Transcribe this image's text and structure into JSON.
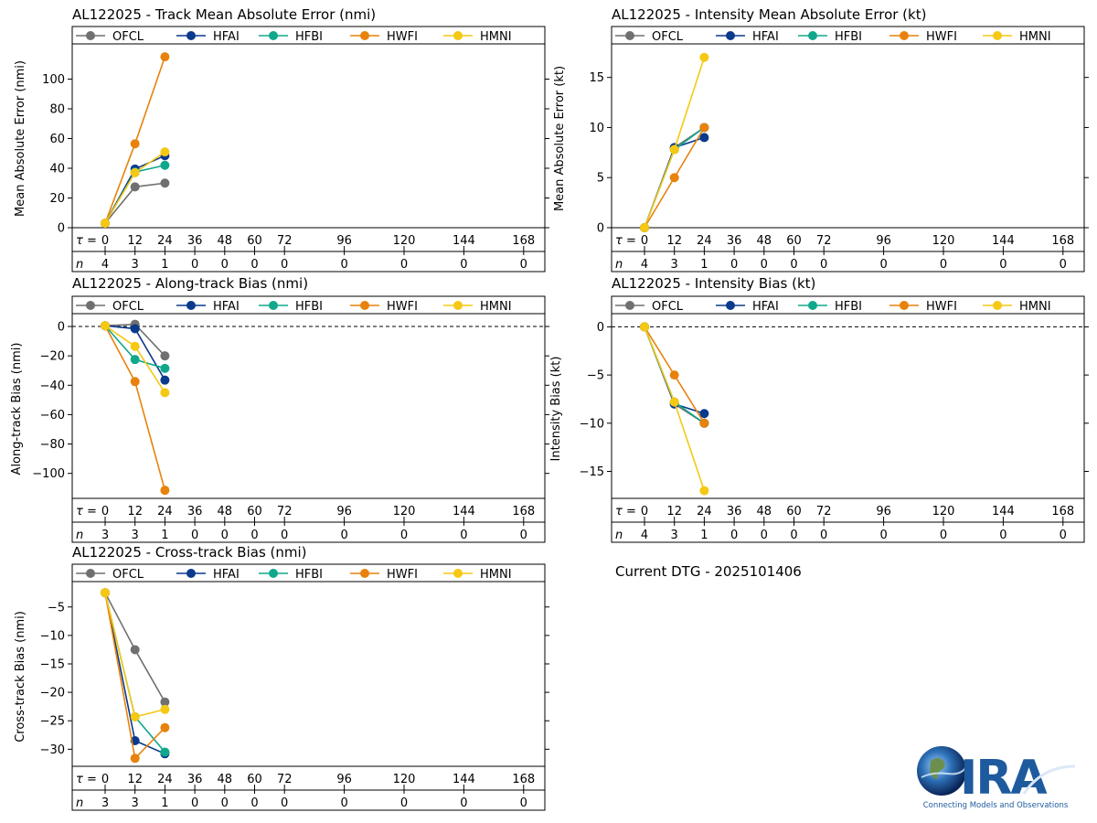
{
  "colors": {
    "OFCL": "#707070",
    "HFAI": "#0a3a8c",
    "HFBI": "#10a88c",
    "HWFI": "#e8820c",
    "HMNI": "#f5c813"
  },
  "models": [
    "OFCL",
    "HFAI",
    "HFBI",
    "HWFI",
    "HMNI"
  ],
  "tau_label": "τ =",
  "n_label": "n",
  "chart_data": [
    {
      "id": "track",
      "type": "line",
      "title": "AL122025 - Track Mean Absolute Error (nmi)",
      "ylabel": "Mean Absolute Error (nmi)",
      "ylim": [
        0,
        120
      ],
      "yticks": [
        0,
        20,
        40,
        60,
        80,
        100
      ],
      "zero_line": false,
      "taus": [
        0,
        12,
        24,
        36,
        48,
        60,
        72,
        96,
        120,
        144,
        168
      ],
      "n": [
        4,
        3,
        1,
        0,
        0,
        0,
        0,
        0,
        0,
        0,
        0
      ],
      "series": [
        {
          "name": "OFCL",
          "x": [
            0,
            12,
            24
          ],
          "values": [
            3,
            27.5,
            30
          ]
        },
        {
          "name": "HFAI",
          "x": [
            0,
            12,
            24
          ],
          "values": [
            3,
            39.5,
            48.5
          ]
        },
        {
          "name": "HFBI",
          "x": [
            0,
            12,
            24
          ],
          "values": [
            3,
            37.5,
            42
          ]
        },
        {
          "name": "HWFI",
          "x": [
            0,
            12,
            24
          ],
          "values": [
            3,
            56.5,
            115
          ]
        },
        {
          "name": "HMNI",
          "x": [
            0,
            12,
            24
          ],
          "values": [
            3,
            37,
            51
          ]
        }
      ]
    },
    {
      "id": "intensity",
      "type": "line",
      "title": "AL122025 - Intensity Mean Absolute Error (kt)",
      "ylabel": "Mean Absolute Error (kt)",
      "ylim": [
        0,
        17.8
      ],
      "yticks": [
        0,
        5,
        10,
        15
      ],
      "zero_line": false,
      "taus": [
        0,
        12,
        24,
        36,
        48,
        60,
        72,
        96,
        120,
        144,
        168
      ],
      "n": [
        4,
        3,
        1,
        0,
        0,
        0,
        0,
        0,
        0,
        0,
        0
      ],
      "series": [
        {
          "name": "OFCL",
          "x": [
            0,
            12,
            24
          ],
          "values": [
            0,
            8,
            10
          ]
        },
        {
          "name": "HFAI",
          "x": [
            0,
            12,
            24
          ],
          "values": [
            0,
            8,
            9
          ]
        },
        {
          "name": "HFBI",
          "x": [
            0,
            12,
            24
          ],
          "values": [
            0,
            7.8,
            10
          ]
        },
        {
          "name": "HWFI",
          "x": [
            0,
            12,
            24
          ],
          "values": [
            0,
            5,
            10
          ]
        },
        {
          "name": "HMNI",
          "x": [
            0,
            12,
            24
          ],
          "values": [
            0,
            7.8,
            17
          ]
        }
      ]
    },
    {
      "id": "along",
      "type": "line",
      "title": "AL122025 - Along-track Bias (nmi)",
      "ylabel": "Along-track Bias (nmi)",
      "ylim": [
        -117,
        5
      ],
      "yticks": [
        0,
        -20,
        -40,
        -60,
        -80,
        -100
      ],
      "zero_line": true,
      "taus": [
        0,
        12,
        24,
        36,
        48,
        60,
        72,
        96,
        120,
        144,
        168
      ],
      "n": [
        3,
        3,
        1,
        0,
        0,
        0,
        0,
        0,
        0,
        0,
        0
      ],
      "series": [
        {
          "name": "OFCL",
          "x": [
            0,
            12,
            24
          ],
          "values": [
            0.5,
            1.5,
            -20
          ]
        },
        {
          "name": "HFAI",
          "x": [
            0,
            12,
            24
          ],
          "values": [
            0.5,
            -1.5,
            -36.5
          ]
        },
        {
          "name": "HFBI",
          "x": [
            0,
            12,
            24
          ],
          "values": [
            0.5,
            -22.5,
            -28.5
          ]
        },
        {
          "name": "HWFI",
          "x": [
            0,
            12,
            24
          ],
          "values": [
            0.5,
            -37.5,
            -111.5
          ]
        },
        {
          "name": "HMNI",
          "x": [
            0,
            12,
            24
          ],
          "values": [
            0.5,
            -13.5,
            -45
          ]
        }
      ]
    },
    {
      "id": "ibias",
      "type": "line",
      "title": "AL122025 - Intensity Bias (kt)",
      "ylabel": "Intensity Bias (kt)",
      "ylim": [
        -17.8,
        0.8
      ],
      "yticks": [
        0,
        -5,
        -10,
        -15
      ],
      "zero_line": true,
      "taus": [
        0,
        12,
        24,
        36,
        48,
        60,
        72,
        96,
        120,
        144,
        168
      ],
      "n": [
        4,
        3,
        1,
        0,
        0,
        0,
        0,
        0,
        0,
        0,
        0
      ],
      "series": [
        {
          "name": "OFCL",
          "x": [
            0,
            12,
            24
          ],
          "values": [
            0,
            -8,
            -10
          ]
        },
        {
          "name": "HFAI",
          "x": [
            0,
            12,
            24
          ],
          "values": [
            0,
            -8,
            -9
          ]
        },
        {
          "name": "HFBI",
          "x": [
            0,
            12,
            24
          ],
          "values": [
            0,
            -7.8,
            -10
          ]
        },
        {
          "name": "HWFI",
          "x": [
            0,
            12,
            24
          ],
          "values": [
            0,
            -5,
            -10
          ]
        },
        {
          "name": "HMNI",
          "x": [
            0,
            12,
            24
          ],
          "values": [
            0,
            -7.8,
            -17
          ]
        }
      ]
    },
    {
      "id": "cross",
      "type": "line",
      "title": "AL122025 - Cross-track Bias (nmi)",
      "ylabel": "Cross-track Bias (nmi)",
      "ylim": [
        -33,
        -1.5
      ],
      "yticks": [
        -5,
        -10,
        -15,
        -20,
        -25,
        -30
      ],
      "zero_line": false,
      "taus": [
        0,
        12,
        24,
        36,
        48,
        60,
        72,
        96,
        120,
        144,
        168
      ],
      "n": [
        3,
        3,
        1,
        0,
        0,
        0,
        0,
        0,
        0,
        0,
        0
      ],
      "series": [
        {
          "name": "OFCL",
          "x": [
            0,
            12,
            24
          ],
          "values": [
            -2.5,
            -12.5,
            -21.7
          ]
        },
        {
          "name": "HFAI",
          "x": [
            0,
            12,
            24
          ],
          "values": [
            -2.5,
            -28.5,
            -30.8
          ]
        },
        {
          "name": "HFBI",
          "x": [
            0,
            12,
            24
          ],
          "values": [
            -2.5,
            -24.3,
            -30.5
          ]
        },
        {
          "name": "HWFI",
          "x": [
            0,
            12,
            24
          ],
          "values": [
            -2.5,
            -31.6,
            -26.2
          ]
        },
        {
          "name": "HMNI",
          "x": [
            0,
            12,
            24
          ],
          "values": [
            -2.5,
            -24.3,
            -23
          ]
        }
      ]
    }
  ],
  "footer": {
    "dtg": "Current DTG - 2025101406",
    "logo_text": "CIRA",
    "logo_tagline": "Connecting Models and Observations"
  }
}
